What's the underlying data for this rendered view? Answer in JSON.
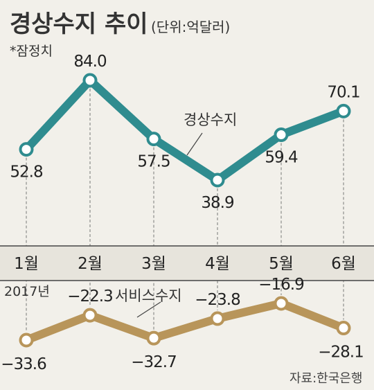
{
  "header": {
    "title": "경상수지 추이",
    "unit": "(단위:억달러)",
    "note": "*잠정치"
  },
  "year_label": "2017년",
  "source": "자료:한국은행",
  "colors": {
    "current_account": "#2f8c8f",
    "services": "#b8955a",
    "band": "#e7e4dc",
    "line": "#444444"
  },
  "chart_data": {
    "type": "line",
    "categories": [
      "1월",
      "2월",
      "3월",
      "4월",
      "5월",
      "6월"
    ],
    "series": [
      {
        "name": "경상수지",
        "values": [
          52.8,
          84.0,
          57.5,
          38.9,
          59.4,
          70.1
        ],
        "labels": [
          "52.8",
          "84.0",
          "57.5",
          "38.9",
          "59.4",
          "70.1"
        ]
      },
      {
        "name": "서비스수지",
        "values": [
          -33.6,
          -22.3,
          -32.7,
          -23.8,
          -16.9,
          -28.1
        ],
        "labels": [
          "−33.6",
          "−22.3",
          "−32.7",
          "−23.8",
          "−16.9",
          "−28.1"
        ]
      }
    ]
  }
}
